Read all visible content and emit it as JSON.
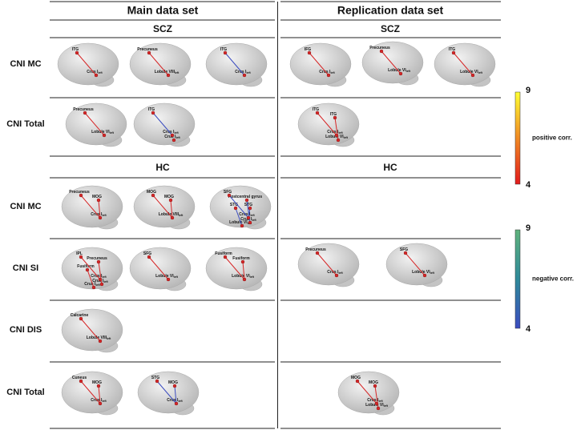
{
  "columns": [
    {
      "title": "Main data set",
      "groups": [
        "SCZ",
        "HC"
      ]
    },
    {
      "title": "Replication data set",
      "groups": [
        "SCZ",
        "HC"
      ]
    }
  ],
  "rows": [
    {
      "label": "CNI MC"
    },
    {
      "label": "CNI Total"
    },
    {
      "label": "CNI MC"
    },
    {
      "label": "CNI SI"
    },
    {
      "label": "CNI DIS"
    },
    {
      "label": "CNI Total"
    }
  ],
  "panels": [
    {
      "color": "#d62728",
      "labels": [
        {
          "text": "ITG"
        },
        {
          "text": "Crus I",
          "sub": "left"
        }
      ]
    },
    {
      "color": "#d62728",
      "labels": [
        {
          "text": "Precuneus"
        },
        {
          "text": "Lobule VIII",
          "sub": "left"
        }
      ]
    },
    {
      "color": "#3b4cc0",
      "labels": [
        {
          "text": "ITG"
        },
        {
          "text": "Crus I",
          "sub": "left"
        }
      ]
    },
    {
      "color": "#d62728",
      "labels": [
        {
          "text": "IFG"
        },
        {
          "text": "Crus I",
          "sub": "left"
        }
      ]
    },
    {
      "color": "#d62728",
      "labels": [
        {
          "text": "Precuneus"
        },
        {
          "text": "Lobule VI",
          "sub": "left"
        }
      ]
    },
    {
      "color": "#d62728",
      "labels": [
        {
          "text": "ITG"
        },
        {
          "text": "Lobule VI",
          "sub": "left"
        }
      ]
    },
    {
      "color": "#d62728",
      "labels": [
        {
          "text": "Precuneus"
        },
        {
          "text": "Lobule VI",
          "sub": "left"
        }
      ]
    },
    {
      "color": "#3b4cc0",
      "labels": [
        {
          "text": "ITG"
        },
        {
          "text": "Crus I",
          "sub": "left"
        },
        {
          "text": "Crus I",
          "sub": "left"
        }
      ]
    },
    {
      "color": "#d62728",
      "labels": [
        {
          "text": "ITG"
        },
        {
          "text": "ITG"
        },
        {
          "text": "Crus I",
          "sub": "left"
        },
        {
          "text": "Lobule VI",
          "sub": "left"
        }
      ]
    },
    {
      "color": "#d62728",
      "labels": [
        {
          "text": "Precuneus"
        },
        {
          "text": "MOG"
        },
        {
          "text": "Crus I",
          "sub": "left"
        }
      ]
    },
    {
      "color": "#d62728",
      "labels": [
        {
          "text": "MOG"
        },
        {
          "text": "MOG"
        },
        {
          "text": "Lobule VIII",
          "sub": "left"
        }
      ]
    },
    {
      "color": "#3b4cc0",
      "labels": [
        {
          "text": "SFG"
        },
        {
          "text": "Postcentral gyrus"
        },
        {
          "text": "STG"
        },
        {
          "text": "STG"
        },
        {
          "text": "Crus I",
          "sub": "left"
        },
        {
          "text": "Crus I",
          "sub": "left"
        },
        {
          "text": "Lobule VI",
          "sub": "left"
        }
      ]
    },
    {
      "color": "#d62728",
      "labels": [
        {
          "text": "IPL"
        },
        {
          "text": "Precuneus"
        },
        {
          "text": "Fusiform"
        },
        {
          "text": "Crus I",
          "sub": "left"
        },
        {
          "text": "Crus I",
          "sub": "left"
        },
        {
          "text": "Crus I",
          "sub": "left"
        }
      ]
    },
    {
      "color": "#d62728",
      "labels": [
        {
          "text": "SFG"
        },
        {
          "text": "Lobule VI",
          "sub": "left"
        }
      ]
    },
    {
      "color": "#d62728",
      "labels": [
        {
          "text": "Fusiform"
        },
        {
          "text": "Fusiform"
        },
        {
          "text": "Lobule VI",
          "sub": "left"
        }
      ]
    },
    {
      "color": "#d62728",
      "labels": [
        {
          "text": "Precuneus"
        },
        {
          "text": "Crus I",
          "sub": "left"
        }
      ]
    },
    {
      "color": "#d62728",
      "labels": [
        {
          "text": "SFG"
        },
        {
          "text": "Lobule VI",
          "sub": "left"
        }
      ]
    },
    {
      "color": "#d62728",
      "labels": [
        {
          "text": "Calcarine"
        },
        {
          "text": "Lobule VIII",
          "sub": "left"
        }
      ]
    },
    {
      "color": "#d62728",
      "labels": [
        {
          "text": "Cuneus"
        },
        {
          "text": "MOG"
        },
        {
          "text": "Crus I",
          "sub": "left"
        }
      ]
    },
    {
      "color": "#3b4cc0",
      "labels": [
        {
          "text": "STG"
        },
        {
          "text": "MOG"
        },
        {
          "text": "Crus I",
          "sub": "left"
        }
      ]
    },
    {
      "color": "#d62728",
      "labels": [
        {
          "text": "MOG"
        },
        {
          "text": "MOG"
        },
        {
          "text": "Crus I",
          "sub": "left"
        },
        {
          "text": "Lobule VI",
          "sub": "left"
        }
      ]
    }
  ],
  "colorbars": [
    {
      "label": "positive corr.",
      "max": 9,
      "min": 4,
      "colors": [
        "#ffff33",
        "#f08a24",
        "#e31a1c"
      ]
    },
    {
      "label": "negative corr.",
      "max": 9,
      "min": 4,
      "colors": [
        "#5fb37c",
        "#2f8a9a",
        "#3b4cc0"
      ]
    }
  ]
}
